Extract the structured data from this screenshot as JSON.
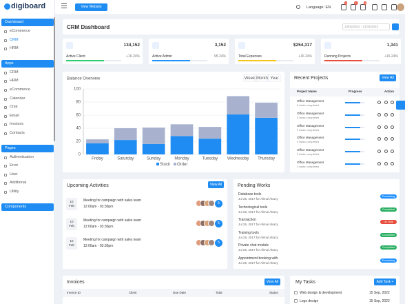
{
  "sidebar": {
    "logo": "digiboard",
    "sections": [
      {
        "title": "Dashboard",
        "items": [
          "eCommerce",
          "CRM",
          "HRM"
        ]
      },
      {
        "title": "Apps",
        "items": [
          "CRM",
          "HRM",
          "eCommerce",
          "Calendar",
          "Chat",
          "Email",
          "Invoices",
          "Contacts"
        ]
      },
      {
        "title": "Pages",
        "items": [
          "Authentication",
          "Error",
          "User",
          "Additional",
          "Utility"
        ]
      },
      {
        "title": "Components",
        "items": []
      }
    ]
  },
  "topbar": {
    "view_website": "View Website",
    "language": "Language: EN",
    "badges": [
      "3",
      "12",
      "5"
    ]
  },
  "header": {
    "title": "CRM Dashboard",
    "date_range": "12/01/2022 - 12/31/2022"
  },
  "stats": [
    {
      "value": "134,152",
      "label": "Active Client",
      "change": "+16.24%",
      "color": "#2ecc71"
    },
    {
      "value": "3,152",
      "label": "Active Admin",
      "change": "95.24%",
      "color": "#1e90ff"
    },
    {
      "value": "$254,317",
      "label": "Total Expenses",
      "change": "+16.24%",
      "color": "#f5c518"
    },
    {
      "value": "1,341",
      "label": "Running Projects",
      "change": "+16.24%",
      "color": "#e74c3c"
    }
  ],
  "chart_data": {
    "type": "bar",
    "stacked": true,
    "title": "Balance Overview",
    "buttons": [
      "Week",
      "Month",
      "Year"
    ],
    "categories": [
      "Friday",
      "Saturday",
      "Sunday",
      "Monday",
      "Tuesday",
      "Wednesday",
      "Thursday"
    ],
    "series": [
      {
        "name": "Stock",
        "color": "#1e8cf2",
        "values": [
          17,
          22,
          16,
          28,
          24,
          61,
          56
        ]
      },
      {
        "name": "Order",
        "color": "#a8b2cf",
        "values": [
          6,
          18,
          25,
          18,
          18,
          28,
          23
        ]
      }
    ],
    "ylim": [
      0,
      100
    ],
    "yticks": [
      0,
      20,
      40,
      60,
      80,
      100
    ],
    "grid": true
  },
  "recent_projects": {
    "title": "Recent Projects",
    "view_all": "View All",
    "columns": [
      "Project Name",
      "Progress",
      "Action"
    ],
    "rows": [
      {
        "name": "Office Management",
        "tasks": "3 tasks completed"
      },
      {
        "name": "Office Management",
        "tasks": "3 tasks completed"
      },
      {
        "name": "Office Management",
        "tasks": "3 tasks completed"
      },
      {
        "name": "Office Management",
        "tasks": "3 tasks completed"
      },
      {
        "name": "Office Management",
        "tasks": "3 tasks completed"
      },
      {
        "name": "Office Management",
        "tasks": "3 tasks completed"
      }
    ]
  },
  "upcoming": {
    "title": "Upcoming Activities",
    "view_all": "View All",
    "rows": [
      {
        "day": "10",
        "month": "Feb",
        "title": "Meeting for campaign with sales team",
        "time": "12:00am - 03:30pm",
        "more": "5"
      },
      {
        "day": "10",
        "month": "Feb",
        "title": "Meeting for campaign with sales team",
        "time": "12:00am - 03:30pm",
        "more": "5"
      },
      {
        "day": "10",
        "month": "Feb",
        "title": "Meeting for campaign with sales team",
        "time": "12:00am - 03:30pm",
        "more": "5"
      }
    ]
  },
  "pending": {
    "title": "Pending Works",
    "rows": [
      {
        "title": "Database tools",
        "meta": "Jul 25, 2017 for Alimul Alrazy",
        "status": "Processing",
        "color": "#1e90ff"
      },
      {
        "title": "Technological tools",
        "meta": "Jul 25, 2017 for Alimul Alrazy",
        "status": "Completed",
        "color": "#27ae60"
      },
      {
        "title": "Transaction",
        "meta": "Jul 25, 2017 for Alimul Alrazy",
        "status": "On Hold",
        "color": "#e74c3c"
      },
      {
        "title": "Training tools",
        "meta": "Jul 25, 2017 for Alimul Alrazy",
        "status": "Completed",
        "color": "#27ae60"
      },
      {
        "title": "Private chat module",
        "meta": "Jul 25, 2017 for Alimul Alrazy",
        "status": "Completed",
        "color": "#27ae60"
      },
      {
        "title": "Appointment booking with",
        "meta": "Jul 25, 2017 for Alimul Alrazy",
        "status": "Processing",
        "color": "#1e90ff"
      }
    ]
  },
  "invoices": {
    "title": "Invoices",
    "view_all": "View All",
    "columns": [
      "Invoice ID",
      "Client",
      "Due Date",
      "Total",
      "Status"
    ]
  },
  "tasks": {
    "title": "My Tasks",
    "add": "Add Task +",
    "rows": [
      {
        "title": "Web design & development",
        "date": "15 Sep, 2022"
      },
      {
        "title": "Logo design",
        "date": "15 Sep, 2022"
      }
    ]
  }
}
